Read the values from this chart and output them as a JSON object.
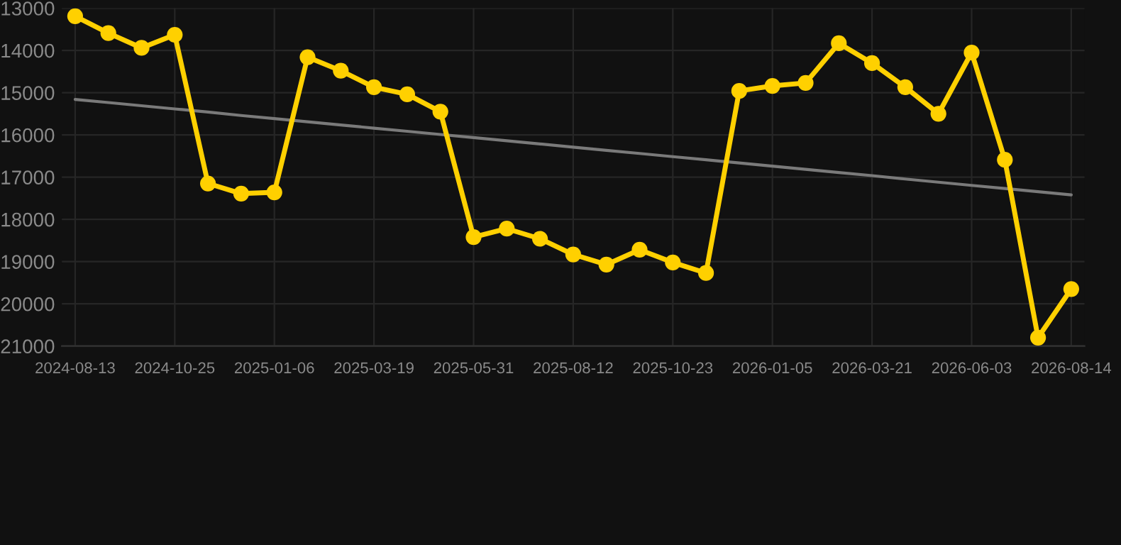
{
  "chart_data": {
    "type": "line",
    "categories": [
      "2024-08-13",
      null,
      null,
      "2024-10-25",
      null,
      null,
      "2025-01-06",
      null,
      null,
      "2025-03-19",
      null,
      null,
      "2025-05-31",
      null,
      null,
      "2025-08-12",
      null,
      null,
      "2025-10-23",
      null,
      null,
      "2026-01-05",
      null,
      null,
      "2026-03-21",
      null,
      null,
      "2026-06-03",
      null,
      null,
      "2026-08-14"
    ],
    "series": [
      {
        "color": "#ffd000",
        "marker": "circle",
        "values": [
          13190,
          13590,
          13940,
          13630,
          17150,
          17390,
          17360,
          14160,
          14480,
          14870,
          15040,
          15450,
          18420,
          18220,
          18460,
          18830,
          19070,
          18720,
          19020,
          19270,
          14960,
          14840,
          14770,
          13830,
          14300,
          14870,
          15500,
          14050,
          16590,
          20800,
          19650
        ]
      },
      {
        "type": "line",
        "color": "#7a7a7a",
        "marker": "none",
        "values": [
          15160,
          15235,
          15310,
          15385,
          15460,
          15540,
          15615,
          15690,
          15765,
          15840,
          15915,
          15990,
          16065,
          16140,
          16215,
          16290,
          16365,
          16440,
          16515,
          16590,
          16665,
          16740,
          16815,
          16890,
          16965,
          17045,
          17120,
          17195,
          17270,
          17345,
          17420
        ]
      }
    ],
    "ylim": [
      21000,
      13000
    ],
    "yticks": [
      13000,
      14000,
      15000,
      16000,
      17000,
      18000,
      19000,
      20000,
      21000
    ],
    "grid": true
  }
}
